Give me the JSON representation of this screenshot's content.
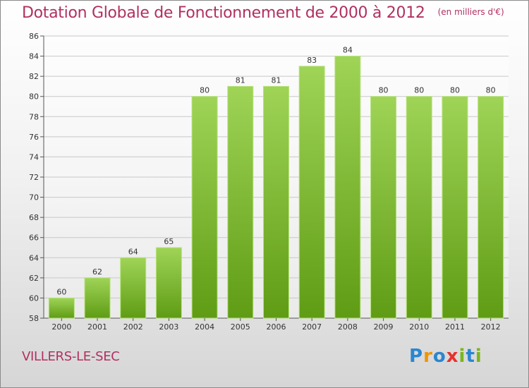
{
  "title": "Dotation Globale de Fonctionnement de 2000 à 2012",
  "unit": "(en milliers d'€)",
  "municipality": "VILLERS-LE-SEC",
  "logo": {
    "letters": [
      "P",
      "r",
      "o",
      "x",
      "i",
      "t",
      "i"
    ],
    "colors": [
      "#2a86d0",
      "#f29400",
      "#2a86d0",
      "#e8312a",
      "#7bb51b",
      "#2a86d0",
      "#7bb51b"
    ]
  },
  "colors": {
    "title": "#b03060",
    "bar_light": "#9fd457",
    "bar_dark": "#5f9c14",
    "grid": "#c8c8c8"
  },
  "chart_data": {
    "type": "bar",
    "title": "Dotation Globale de Fonctionnement de 2000 à 2012",
    "ylabel": "(en milliers d'€)",
    "xlabel": "",
    "categories": [
      "2000",
      "2001",
      "2002",
      "2003",
      "2004",
      "2005",
      "2006",
      "2007",
      "2008",
      "2009",
      "2010",
      "2011",
      "2012"
    ],
    "values": [
      60,
      62,
      64,
      65,
      80,
      81,
      81,
      83,
      84,
      80,
      80,
      80,
      80
    ],
    "ylim": [
      58,
      86
    ],
    "yticks": [
      58,
      60,
      62,
      64,
      66,
      68,
      70,
      72,
      74,
      76,
      78,
      80,
      82,
      84,
      86
    ],
    "grid": true
  }
}
